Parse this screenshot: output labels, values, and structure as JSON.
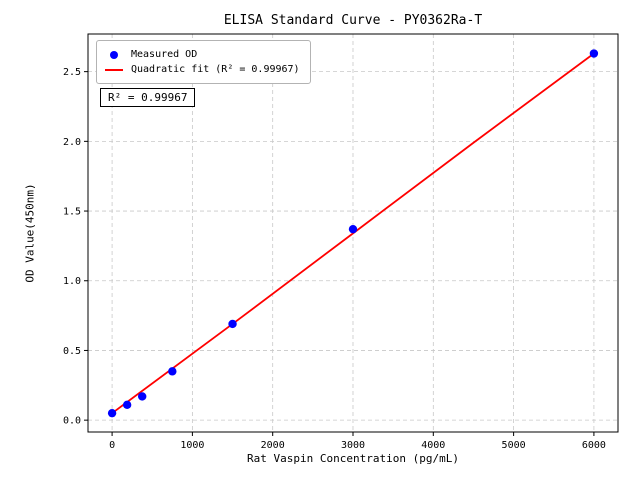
{
  "title": "ELISA Standard Curve - PY0362Ra-T",
  "legend": {
    "measured_label": "Measured OD",
    "fit_label": "Quadratic fit (R² = 0.99967)"
  },
  "annotation": {
    "r_squared_text": "R² = 0.99967"
  },
  "colors": {
    "point": "#0000ff",
    "fit_line": "#ff0000",
    "grid": "#c8c8c8",
    "axis": "#000000"
  },
  "chart_data": {
    "type": "scatter",
    "title": "ELISA Standard Curve - PY0362Ra-T",
    "xlabel": "Rat Vaspin Concentration (pg/mL)",
    "ylabel": "OD Value(450nm)",
    "series": [
      {
        "name": "Measured OD",
        "x": [
          0,
          187.5,
          375,
          750,
          1500,
          3000,
          6000
        ],
        "y": [
          0.05,
          0.11,
          0.17,
          0.35,
          0.69,
          1.37,
          2.63
        ]
      }
    ],
    "fit_line": {
      "name": "Quadratic fit",
      "r_squared": 0.99967,
      "x": [
        0,
        1500,
        3000,
        4500,
        6000
      ],
      "y": [
        0.05,
        0.69,
        1.34,
        1.99,
        2.63
      ]
    },
    "xlim": [
      -300,
      6300
    ],
    "ylim": [
      -0.085,
      2.77
    ],
    "xticks": [
      0,
      1000,
      2000,
      3000,
      4000,
      5000,
      6000
    ],
    "yticks": [
      0,
      0.5,
      1,
      1.5,
      2,
      2.5
    ],
    "grid": true,
    "legend_position": "upper left"
  }
}
